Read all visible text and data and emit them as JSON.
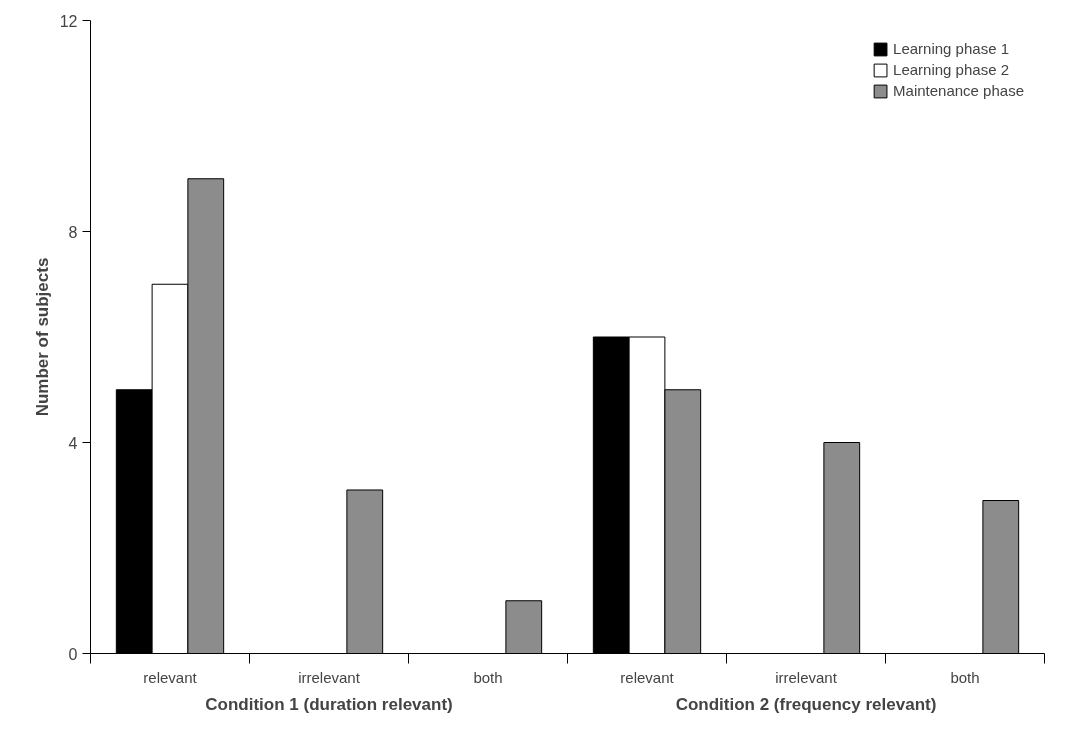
{
  "chart_data": {
    "type": "bar",
    "ylabel": "Number of subjects",
    "categories": [
      "relevant",
      "irrelevant",
      "both",
      "relevant",
      "irrelevant",
      "both"
    ],
    "annotations": [
      "Condition 1 (duration relevant)",
      "Condition 2 (frequency relevant)"
    ],
    "series": [
      {
        "name": "Learning phase 1",
        "color": "#000000",
        "values": [
          5,
          null,
          null,
          6,
          null,
          null
        ]
      },
      {
        "name": "Learning phase 2",
        "color": "#ffffff",
        "values": [
          7,
          null,
          null,
          6,
          null,
          null
        ]
      },
      {
        "name": "Maintenance phase",
        "color": "#8c8c8c",
        "values": [
          9,
          3.1,
          1,
          5,
          4,
          2.9
        ]
      }
    ],
    "ylim": [
      0,
      12
    ],
    "yticks": [
      0,
      4,
      8,
      12
    ],
    "grid": false,
    "legend": "top right"
  }
}
